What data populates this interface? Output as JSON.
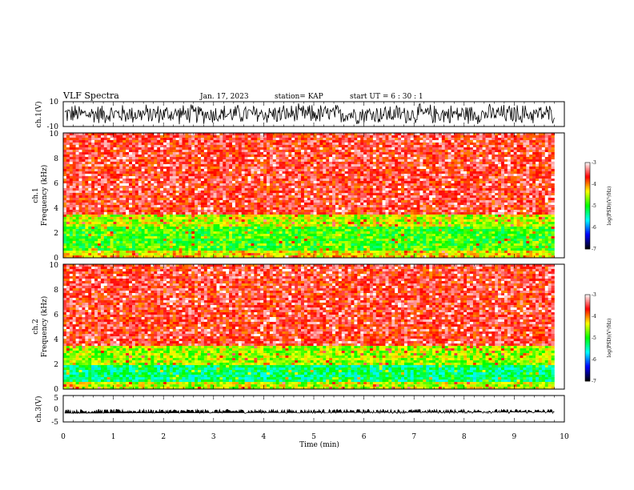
{
  "header": {
    "title": "VLF Spectra",
    "date": "Jan. 17, 2023",
    "station": "station= KAP",
    "start_ut": "start  UT  =   6  : 30 : 1"
  },
  "chart_data": [
    {
      "type": "line",
      "panel": "ch1-waveform",
      "ylabel": "ch.1(V)",
      "ylim": [
        -10,
        10
      ],
      "yticks": [
        "10",
        "-10"
      ],
      "xlim": [
        0,
        10
      ],
      "color": "#000000",
      "signal": {
        "center": 0,
        "amplitude_range": [
          -9,
          9
        ]
      }
    },
    {
      "type": "heatmap",
      "panel": "ch1-spectrogram",
      "ylabel": "ch.1\nFrequency  (kHz)",
      "ylim": [
        0,
        10
      ],
      "yticks": [
        "0",
        "2",
        "4",
        "6",
        "8",
        "10"
      ],
      "xlim": [
        0,
        10
      ],
      "colorbar": {
        "label": "log(PSD)(V²/Hz)",
        "range": [
          -7,
          -3
        ],
        "ticks": [
          "-3",
          "-4",
          "-5",
          "-6",
          "-7"
        ]
      },
      "bands": [
        {
          "freq_khz": [
            0,
            0.5
          ],
          "level": -4.3
        },
        {
          "freq_khz": [
            0.5,
            2.5
          ],
          "level": -4.9
        },
        {
          "freq_khz": [
            2.5,
            3.5
          ],
          "level": -4.5
        },
        {
          "freq_khz": [
            3.5,
            10
          ],
          "level": -3.6
        }
      ],
      "data_end_min": 9.8
    },
    {
      "type": "heatmap",
      "panel": "ch2-spectrogram",
      "ylabel": "ch.2\nFrequency  (kHz)",
      "ylim": [
        0,
        10
      ],
      "yticks": [
        "0",
        "2",
        "4",
        "6",
        "8",
        "10"
      ],
      "xlim": [
        0,
        10
      ],
      "colorbar": {
        "label": "log(PSD)(V²/Hz)",
        "range": [
          -7,
          -3
        ],
        "ticks": [
          "-3",
          "-4",
          "-5",
          "-6",
          "-7"
        ]
      },
      "bands": [
        {
          "freq_khz": [
            0,
            0.5
          ],
          "level": -4.5
        },
        {
          "freq_khz": [
            0.5,
            2.0
          ],
          "level": -5.3
        },
        {
          "freq_khz": [
            2.0,
            3.5
          ],
          "level": -4.6
        },
        {
          "freq_khz": [
            3.5,
            10
          ],
          "level": -3.6
        }
      ],
      "data_end_min": 9.8
    },
    {
      "type": "line",
      "panel": "ch3-waveform",
      "ylabel": "ch.3(V)",
      "ylim": [
        -5,
        5
      ],
      "yticks": [
        "5",
        "0",
        "-5"
      ],
      "xlim": [
        0,
        10
      ],
      "color": "#000000",
      "signal": {
        "center": -0.5,
        "amplitude_range": [
          -1.3,
          0.3
        ]
      }
    }
  ],
  "xaxis": {
    "label": "Time  (min)",
    "ticks": [
      "0",
      "1",
      "2",
      "3",
      "4",
      "5",
      "6",
      "7",
      "8",
      "9",
      "10"
    ]
  },
  "colors": {
    "scale": [
      "#000000",
      "#0000ff",
      "#00ffff",
      "#00ff00",
      "#ffff00",
      "#ff0000",
      "#ffffff"
    ]
  }
}
